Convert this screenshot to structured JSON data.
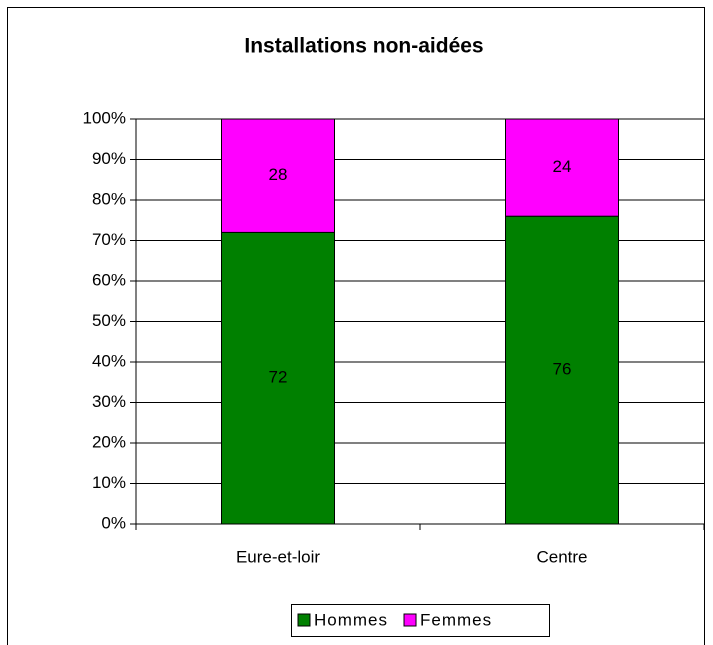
{
  "chart_data": {
    "type": "stacked_bar",
    "title": "Installations non-aidées",
    "categories": [
      "Eure-et-loir",
      "Centre"
    ],
    "series": [
      {
        "name": "Hommes",
        "color": "#008000",
        "values": [
          72,
          76
        ]
      },
      {
        "name": "Femmes",
        "color": "#ff00ff",
        "values": [
          28,
          24
        ]
      }
    ],
    "ylim": [
      0,
      100
    ],
    "yticks": [
      {
        "value": 0,
        "label": "0%"
      },
      {
        "value": 10,
        "label": "10%"
      },
      {
        "value": 20,
        "label": "20%"
      },
      {
        "value": 30,
        "label": "30%"
      },
      {
        "value": 40,
        "label": "40%"
      },
      {
        "value": 50,
        "label": "50%"
      },
      {
        "value": 60,
        "label": "60%"
      },
      {
        "value": 70,
        "label": "70%"
      },
      {
        "value": 80,
        "label": "80%"
      },
      {
        "value": 90,
        "label": "90%"
      },
      {
        "value": 100,
        "label": "100%"
      }
    ],
    "grid": true,
    "legend": "bottom"
  }
}
